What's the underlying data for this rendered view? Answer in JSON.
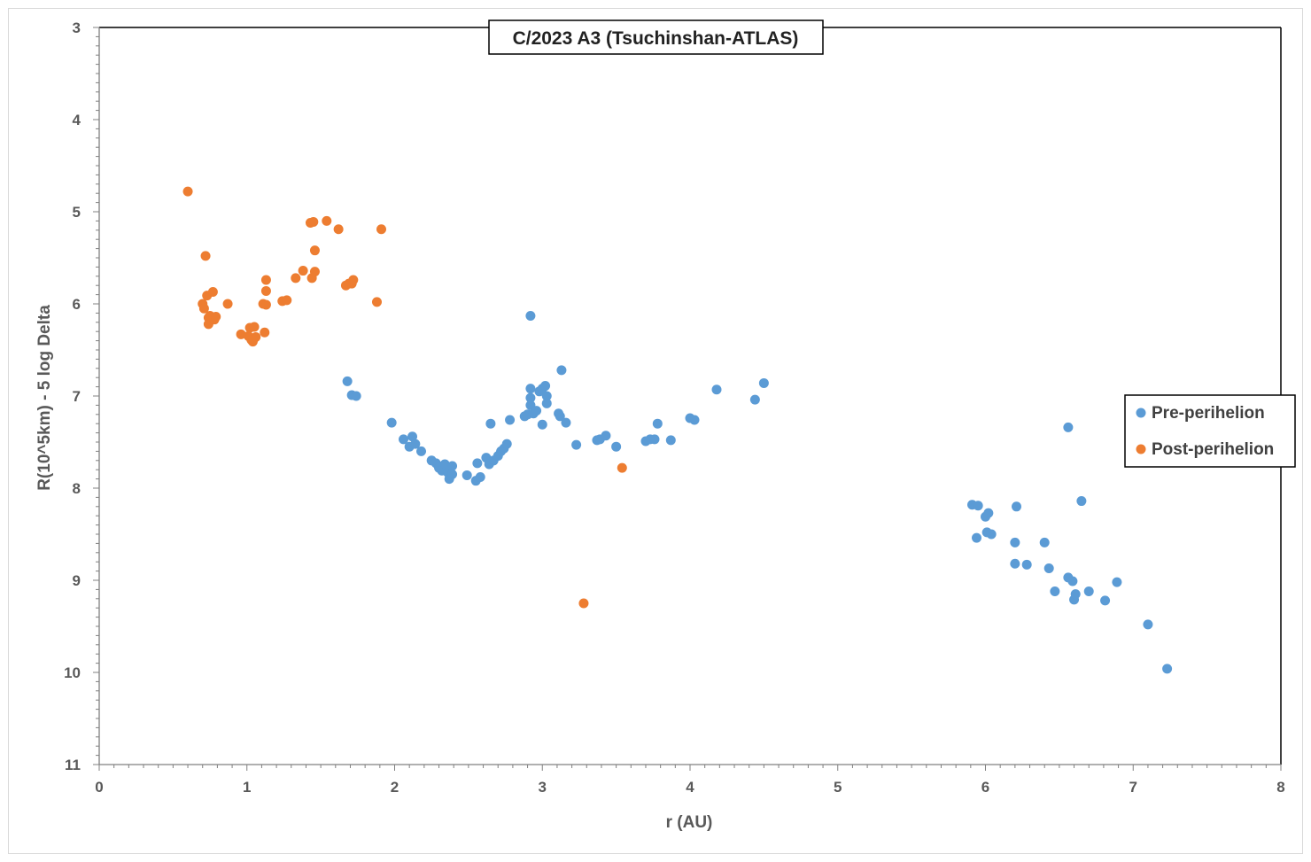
{
  "chart_data": {
    "type": "scatter",
    "title": "C/2023 A3 (Tsuchinshan-ATLAS)",
    "xlabel": "r (AU)",
    "ylabel": "R(10^5km) - 5 log Delta",
    "xlim": [
      0,
      8
    ],
    "ylim": [
      3,
      11
    ],
    "y_inverted": true,
    "x_ticks": [
      0,
      1,
      2,
      3,
      4,
      5,
      6,
      7,
      8
    ],
    "y_ticks": [
      3,
      4,
      5,
      6,
      7,
      8,
      9,
      10,
      11
    ],
    "grid": false,
    "legend_position": "right",
    "series": [
      {
        "name": "Pre-perihelion",
        "color": "#5b9bd5",
        "points": [
          [
            1.68,
            6.84
          ],
          [
            1.71,
            6.99
          ],
          [
            1.74,
            7.0
          ],
          [
            1.98,
            7.29
          ],
          [
            2.06,
            7.47
          ],
          [
            2.1,
            7.55
          ],
          [
            2.12,
            7.44
          ],
          [
            2.14,
            7.52
          ],
          [
            2.18,
            7.6
          ],
          [
            2.25,
            7.7
          ],
          [
            2.28,
            7.73
          ],
          [
            2.3,
            7.78
          ],
          [
            2.32,
            7.81
          ],
          [
            2.34,
            7.74
          ],
          [
            2.36,
            7.83
          ],
          [
            2.37,
            7.9
          ],
          [
            2.39,
            7.76
          ],
          [
            2.39,
            7.85
          ],
          [
            2.49,
            7.86
          ],
          [
            2.55,
            7.92
          ],
          [
            2.56,
            7.73
          ],
          [
            2.58,
            7.88
          ],
          [
            2.62,
            7.67
          ],
          [
            2.64,
            7.74
          ],
          [
            2.65,
            7.3
          ],
          [
            2.67,
            7.7
          ],
          [
            2.7,
            7.65
          ],
          [
            2.72,
            7.6
          ],
          [
            2.74,
            7.57
          ],
          [
            2.76,
            7.52
          ],
          [
            2.78,
            7.26
          ],
          [
            2.88,
            7.22
          ],
          [
            2.9,
            7.2
          ],
          [
            2.92,
            6.13
          ],
          [
            2.92,
            6.92
          ],
          [
            2.92,
            7.02
          ],
          [
            2.92,
            7.1
          ],
          [
            2.94,
            7.19
          ],
          [
            2.96,
            7.16
          ],
          [
            2.98,
            6.95
          ],
          [
            3.0,
            6.92
          ],
          [
            3.0,
            7.31
          ],
          [
            3.02,
            6.89
          ],
          [
            3.03,
            7.0
          ],
          [
            3.03,
            7.08
          ],
          [
            3.11,
            7.19
          ],
          [
            3.12,
            7.22
          ],
          [
            3.13,
            6.72
          ],
          [
            3.16,
            7.29
          ],
          [
            3.23,
            7.53
          ],
          [
            3.37,
            7.48
          ],
          [
            3.39,
            7.47
          ],
          [
            3.43,
            7.43
          ],
          [
            3.5,
            7.55
          ],
          [
            3.7,
            7.49
          ],
          [
            3.73,
            7.47
          ],
          [
            3.76,
            7.47
          ],
          [
            3.78,
            7.3
          ],
          [
            3.87,
            7.48
          ],
          [
            4.0,
            7.24
          ],
          [
            4.03,
            7.26
          ],
          [
            4.18,
            6.93
          ],
          [
            4.44,
            7.04
          ],
          [
            4.5,
            6.86
          ],
          [
            5.91,
            8.18
          ],
          [
            5.94,
            8.54
          ],
          [
            5.95,
            8.19
          ],
          [
            6.0,
            8.31
          ],
          [
            6.01,
            8.48
          ],
          [
            6.02,
            8.27
          ],
          [
            6.04,
            8.5
          ],
          [
            6.2,
            8.59
          ],
          [
            6.2,
            8.82
          ],
          [
            6.21,
            8.2
          ],
          [
            6.28,
            8.83
          ],
          [
            6.4,
            8.59
          ],
          [
            6.43,
            8.87
          ],
          [
            6.47,
            9.12
          ],
          [
            6.56,
            7.34
          ],
          [
            6.56,
            8.97
          ],
          [
            6.59,
            9.01
          ],
          [
            6.6,
            9.21
          ],
          [
            6.61,
            9.15
          ],
          [
            6.65,
            8.14
          ],
          [
            6.7,
            9.12
          ],
          [
            6.81,
            9.22
          ],
          [
            6.89,
            9.02
          ],
          [
            7.1,
            9.48
          ],
          [
            7.23,
            9.96
          ]
        ]
      },
      {
        "name": "Post-perihelion",
        "color": "#ed7d31",
        "points": [
          [
            0.6,
            4.78
          ],
          [
            0.7,
            6.0
          ],
          [
            0.71,
            6.05
          ],
          [
            0.72,
            5.48
          ],
          [
            0.73,
            5.91
          ],
          [
            0.74,
            6.15
          ],
          [
            0.74,
            6.22
          ],
          [
            0.75,
            6.13
          ],
          [
            0.77,
            5.87
          ],
          [
            0.78,
            6.17
          ],
          [
            0.79,
            6.14
          ],
          [
            0.87,
            6.0
          ],
          [
            0.96,
            6.33
          ],
          [
            1.01,
            6.35
          ],
          [
            1.02,
            6.26
          ],
          [
            1.03,
            6.39
          ],
          [
            1.04,
            6.41
          ],
          [
            1.05,
            6.25
          ],
          [
            1.06,
            6.36
          ],
          [
            1.11,
            6.0
          ],
          [
            1.12,
            6.31
          ],
          [
            1.13,
            5.74
          ],
          [
            1.13,
            5.86
          ],
          [
            1.13,
            6.01
          ],
          [
            1.24,
            5.97
          ],
          [
            1.27,
            5.96
          ],
          [
            1.33,
            5.72
          ],
          [
            1.38,
            5.64
          ],
          [
            1.43,
            5.12
          ],
          [
            1.44,
            5.72
          ],
          [
            1.45,
            5.11
          ],
          [
            1.46,
            5.42
          ],
          [
            1.46,
            5.65
          ],
          [
            1.54,
            5.1
          ],
          [
            1.62,
            5.19
          ],
          [
            1.67,
            5.8
          ],
          [
            1.69,
            5.78
          ],
          [
            1.71,
            5.78
          ],
          [
            1.72,
            5.74
          ],
          [
            1.88,
            5.98
          ],
          [
            1.91,
            5.19
          ],
          [
            3.28,
            9.25
          ],
          [
            3.54,
            7.78
          ]
        ]
      }
    ]
  }
}
